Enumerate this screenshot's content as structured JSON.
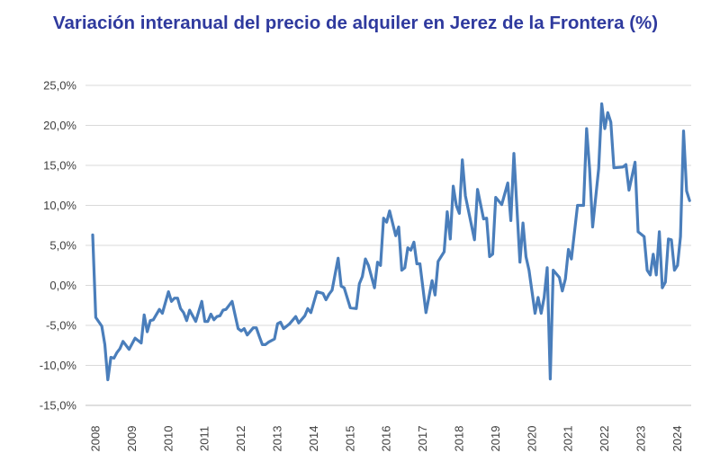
{
  "chart_data": {
    "type": "line",
    "title": "Variación interanual del precio de alquiler en Jerez de la Frontera (%)",
    "xlabel": "",
    "ylabel": "",
    "ylim": [
      -15,
      25
    ],
    "y_ticks": [
      "-15,0%",
      "-10,0%",
      "-5,0%",
      "0,0%",
      "5,0%",
      "10,0%",
      "15,0%",
      "20,0%",
      "25,0%"
    ],
    "y_tick_values": [
      -15,
      -10,
      -5,
      0,
      5,
      10,
      15,
      20,
      25
    ],
    "x_ticks": [
      "2008",
      "2009",
      "2010",
      "2011",
      "2012",
      "2013",
      "2014",
      "2015",
      "2016",
      "2017",
      "2018",
      "2019",
      "2020",
      "2021",
      "2022",
      "2023",
      "2024"
    ],
    "grid": "horizontal",
    "legend": "none",
    "colors": {
      "title": "#2F3A9E",
      "line": "#4A7EBB",
      "grid": "#D9D9D9"
    },
    "series": [
      {
        "values": [
          [
            "2008-01",
            6.3
          ],
          [
            "2008-02",
            -4.0
          ],
          [
            "2008-04",
            -5.1
          ],
          [
            "2008-05",
            -7.4
          ],
          [
            "2008-06",
            -11.8
          ],
          [
            "2008-07",
            -9.0
          ],
          [
            "2008-08",
            -9.1
          ],
          [
            "2008-09",
            -8.4
          ],
          [
            "2008-10",
            -7.9
          ],
          [
            "2008-11",
            -7.0
          ],
          [
            "2009-01",
            -8.0
          ],
          [
            "2009-03",
            -6.6
          ],
          [
            "2009-05",
            -7.2
          ],
          [
            "2009-06",
            -3.7
          ],
          [
            "2009-07",
            -5.8
          ],
          [
            "2009-08",
            -4.4
          ],
          [
            "2009-09",
            -4.3
          ],
          [
            "2009-11",
            -3.0
          ],
          [
            "2009-12",
            -3.5
          ],
          [
            "2010-02",
            -0.8
          ],
          [
            "2010-03",
            -2.0
          ],
          [
            "2010-04",
            -1.6
          ],
          [
            "2010-05",
            -1.6
          ],
          [
            "2010-06",
            -2.9
          ],
          [
            "2010-07",
            -3.4
          ],
          [
            "2010-08",
            -4.4
          ],
          [
            "2010-09",
            -3.1
          ],
          [
            "2010-11",
            -4.5
          ],
          [
            "2011-01",
            -2.0
          ],
          [
            "2011-02",
            -4.5
          ],
          [
            "2011-03",
            -4.5
          ],
          [
            "2011-04",
            -3.6
          ],
          [
            "2011-05",
            -4.3
          ],
          [
            "2011-06",
            -3.9
          ],
          [
            "2011-07",
            -3.8
          ],
          [
            "2011-08",
            -3.1
          ],
          [
            "2011-09",
            -3.0
          ],
          [
            "2011-11",
            -2.0
          ],
          [
            "2011-12",
            -3.7
          ],
          [
            "2012-01",
            -5.4
          ],
          [
            "2012-02",
            -5.7
          ],
          [
            "2012-03",
            -5.4
          ],
          [
            "2012-04",
            -6.2
          ],
          [
            "2012-06",
            -5.3
          ],
          [
            "2012-07",
            -5.3
          ],
          [
            "2012-08",
            -6.4
          ],
          [
            "2012-09",
            -7.4
          ],
          [
            "2012-10",
            -7.4
          ],
          [
            "2012-11",
            -7.1
          ],
          [
            "2013-01",
            -6.7
          ],
          [
            "2013-02",
            -4.8
          ],
          [
            "2013-03",
            -4.6
          ],
          [
            "2013-04",
            -5.4
          ],
          [
            "2013-06",
            -4.8
          ],
          [
            "2013-08",
            -3.9
          ],
          [
            "2013-09",
            -4.7
          ],
          [
            "2013-11",
            -3.8
          ],
          [
            "2013-12",
            -2.9
          ],
          [
            "2014-01",
            -3.4
          ],
          [
            "2014-03",
            -0.8
          ],
          [
            "2014-05",
            -1.0
          ],
          [
            "2014-06",
            -1.8
          ],
          [
            "2014-07",
            -1.1
          ],
          [
            "2014-08",
            -0.6
          ],
          [
            "2014-10",
            3.4
          ],
          [
            "2014-11",
            -0.1
          ],
          [
            "2014-12",
            -0.3
          ],
          [
            "2015-02",
            -2.8
          ],
          [
            "2015-04",
            -2.9
          ],
          [
            "2015-05",
            0.2
          ],
          [
            "2015-06",
            1.1
          ],
          [
            "2015-07",
            3.3
          ],
          [
            "2015-08",
            2.5
          ],
          [
            "2015-10",
            -0.3
          ],
          [
            "2015-11",
            2.9
          ],
          [
            "2015-12",
            2.5
          ],
          [
            "2016-01",
            8.4
          ],
          [
            "2016-02",
            7.9
          ],
          [
            "2016-03",
            9.3
          ],
          [
            "2016-05",
            6.2
          ],
          [
            "2016-06",
            7.3
          ],
          [
            "2016-07",
            1.9
          ],
          [
            "2016-08",
            2.2
          ],
          [
            "2016-09",
            4.7
          ],
          [
            "2016-10",
            4.4
          ],
          [
            "2016-11",
            5.4
          ],
          [
            "2016-12",
            2.7
          ],
          [
            "2017-01",
            2.7
          ],
          [
            "2017-03",
            -3.4
          ],
          [
            "2017-05",
            0.6
          ],
          [
            "2017-06",
            -1.2
          ],
          [
            "2017-07",
            3.0
          ],
          [
            "2017-09",
            4.2
          ],
          [
            "2017-10",
            9.2
          ],
          [
            "2017-11",
            5.8
          ],
          [
            "2017-12",
            12.4
          ],
          [
            "2018-01",
            10.0
          ],
          [
            "2018-02",
            9.0
          ],
          [
            "2018-03",
            15.7
          ],
          [
            "2018-04",
            11.2
          ],
          [
            "2018-07",
            5.7
          ],
          [
            "2018-08",
            12.0
          ],
          [
            "2018-10",
            8.3
          ],
          [
            "2018-11",
            8.4
          ],
          [
            "2018-12",
            3.6
          ],
          [
            "2019-01",
            3.9
          ],
          [
            "2019-02",
            11.0
          ],
          [
            "2019-04",
            10.1
          ],
          [
            "2019-06",
            12.8
          ],
          [
            "2019-07",
            8.1
          ],
          [
            "2019-08",
            16.5
          ],
          [
            "2019-10",
            2.9
          ],
          [
            "2019-11",
            7.8
          ],
          [
            "2019-12",
            3.6
          ],
          [
            "2020-01",
            1.9
          ],
          [
            "2020-03",
            -3.5
          ],
          [
            "2020-04",
            -1.5
          ],
          [
            "2020-05",
            -3.5
          ],
          [
            "2020-06",
            -1.5
          ],
          [
            "2020-07",
            2.2
          ],
          [
            "2020-08",
            -11.7
          ],
          [
            "2020-09",
            1.9
          ],
          [
            "2020-11",
            1.0
          ],
          [
            "2020-12",
            -0.7
          ],
          [
            "2021-01",
            0.8
          ],
          [
            "2021-02",
            4.5
          ],
          [
            "2021-03",
            3.3
          ],
          [
            "2021-05",
            10.0
          ],
          [
            "2021-07",
            10.0
          ],
          [
            "2021-08",
            19.6
          ],
          [
            "2021-09",
            14.6
          ],
          [
            "2021-10",
            7.3
          ],
          [
            "2021-12",
            14.6
          ],
          [
            "2022-01",
            22.7
          ],
          [
            "2022-02",
            19.6
          ],
          [
            "2022-03",
            21.6
          ],
          [
            "2022-04",
            20.4
          ],
          [
            "2022-05",
            14.7
          ],
          [
            "2022-08",
            14.8
          ],
          [
            "2022-09",
            15.1
          ],
          [
            "2022-10",
            11.9
          ],
          [
            "2022-12",
            15.4
          ],
          [
            "2023-01",
            6.7
          ],
          [
            "2023-03",
            6.1
          ],
          [
            "2023-04",
            1.9
          ],
          [
            "2023-05",
            1.3
          ],
          [
            "2023-06",
            3.9
          ],
          [
            "2023-07",
            1.3
          ],
          [
            "2023-08",
            6.7
          ],
          [
            "2023-09",
            -0.3
          ],
          [
            "2023-10",
            0.4
          ],
          [
            "2023-11",
            5.8
          ],
          [
            "2023-12",
            5.7
          ],
          [
            "2024-01",
            1.9
          ],
          [
            "2024-02",
            2.5
          ],
          [
            "2024-03",
            6.1
          ],
          [
            "2024-04",
            19.3
          ],
          [
            "2024-05",
            11.8
          ],
          [
            "2024-06",
            10.6
          ]
        ]
      }
    ]
  }
}
